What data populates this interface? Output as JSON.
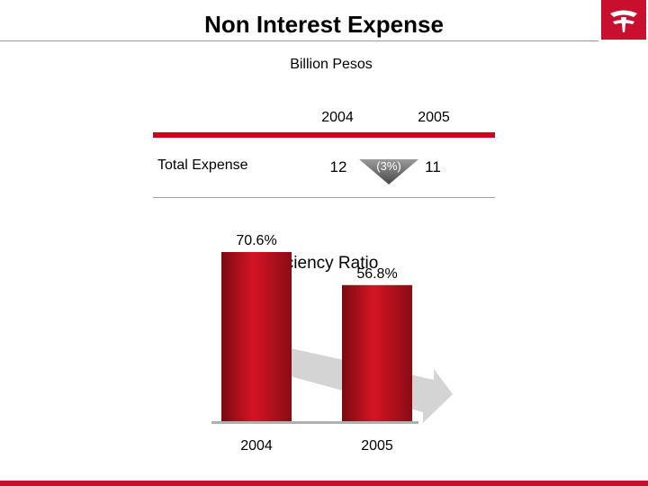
{
  "header": {
    "title": "Non Interest Expense"
  },
  "subtitle": "Billion Pesos",
  "table": {
    "columns": [
      "2004",
      "2005"
    ],
    "row_label": "Total Expense",
    "values": [
      "12",
      "11"
    ],
    "change": "(3%)"
  },
  "chart_data": {
    "type": "bar",
    "title": "Efficiency Ratio",
    "categories": [
      "2004",
      "2005"
    ],
    "values": [
      70.6,
      56.8
    ],
    "data_labels": [
      "70.6%",
      "56.8%"
    ],
    "ylim": [
      0,
      80
    ],
    "grid": false,
    "trend": "down",
    "colors": {
      "bar": "#c0101e",
      "bar_dark": "#7a0a12",
      "arrow": "#d4d4d4"
    }
  }
}
